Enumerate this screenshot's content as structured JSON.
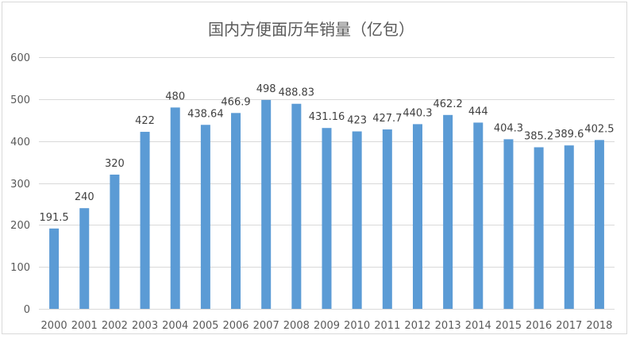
{
  "chart_data": {
    "type": "bar",
    "title": "国内方便面历年销量（亿包）",
    "xlabel": "",
    "ylabel": "",
    "categories": [
      "2000",
      "2001",
      "2002",
      "2003",
      "2004",
      "2005",
      "2006",
      "2007",
      "2008",
      "2009",
      "2010",
      "2011",
      "2012",
      "2013",
      "2014",
      "2015",
      "2016",
      "2017",
      "2018"
    ],
    "values": [
      191.5,
      240,
      320,
      422,
      480,
      438.64,
      466.9,
      498,
      488.83,
      431.16,
      423,
      427.7,
      440.3,
      462.2,
      444,
      404.3,
      385.2,
      389.6,
      402.5
    ],
    "ylim": [
      0,
      600
    ],
    "yticks": [
      0,
      100,
      200,
      300,
      400,
      500,
      600
    ],
    "grid": true,
    "legend": "none",
    "data_labels": true,
    "bar_color": "#5B9BD5"
  }
}
